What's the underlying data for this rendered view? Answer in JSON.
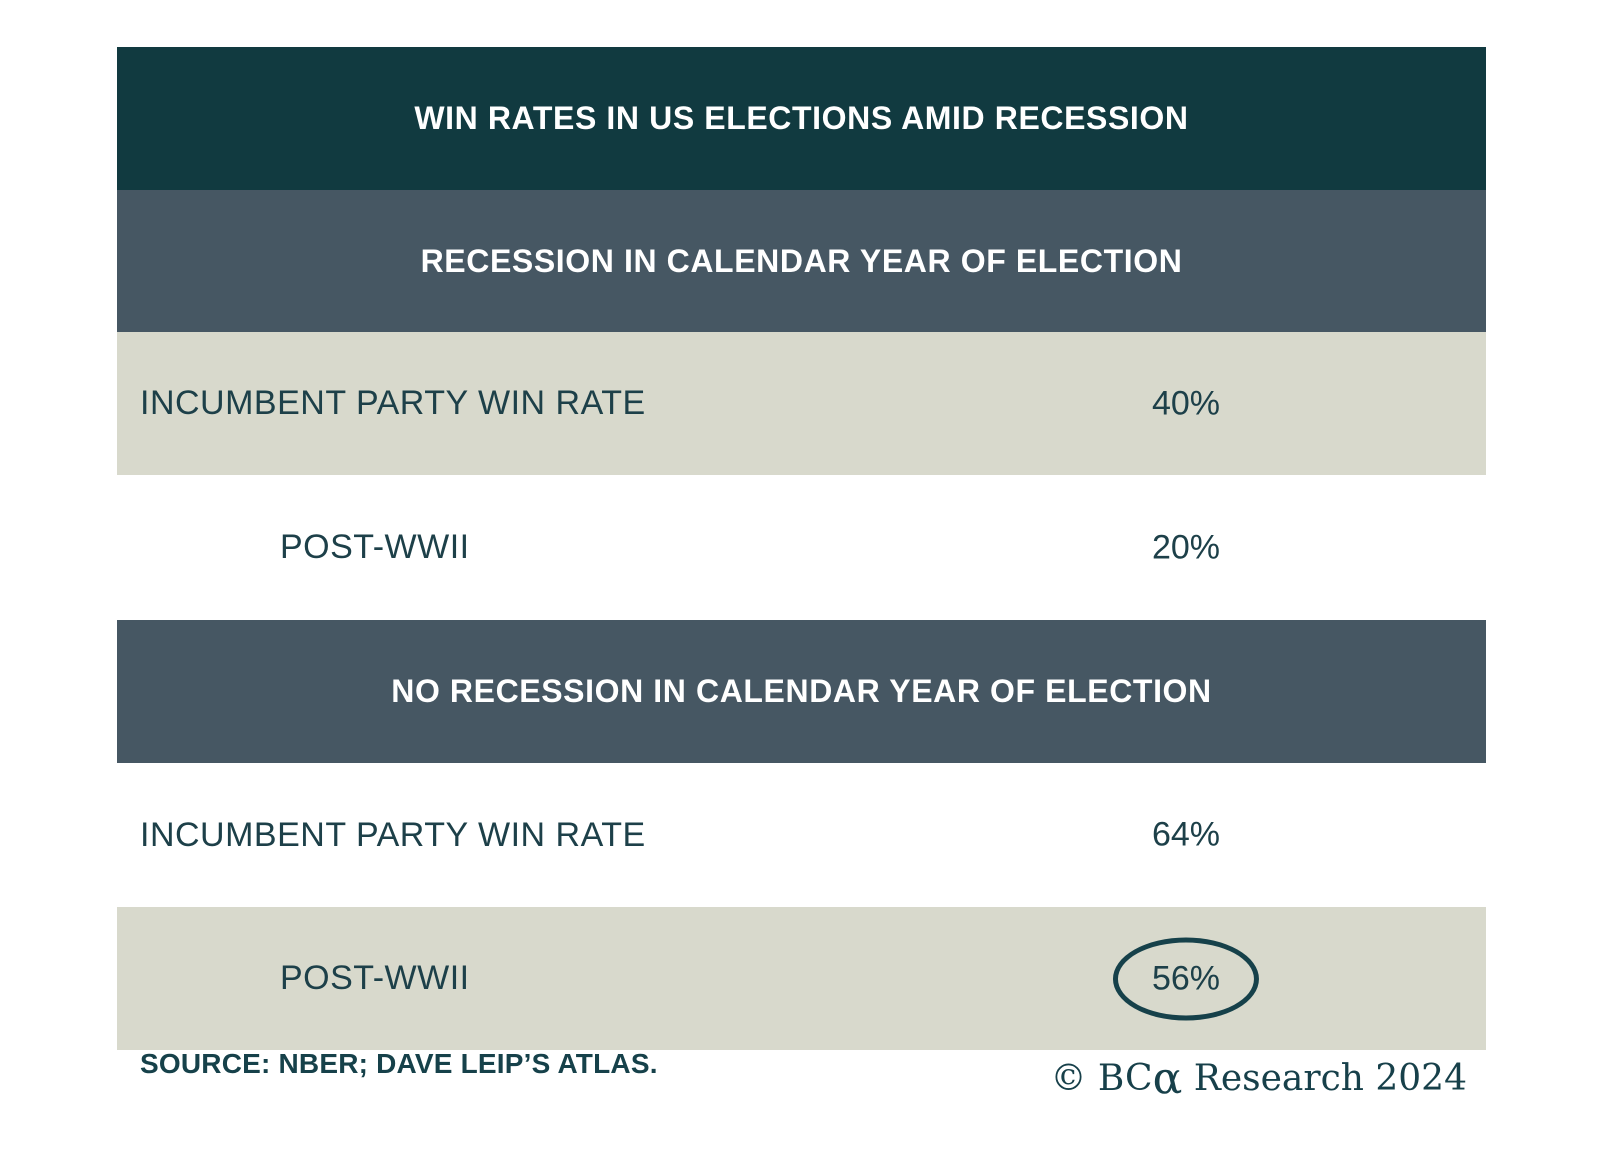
{
  "title": "WIN RATES IN US ELECTIONS AMID RECESSION",
  "colors": {
    "header_dark_teal": "#113a40",
    "section_slate": "#465763",
    "row_shaded": "#d8d9cc",
    "text_teal": "#1d4049",
    "circle_stroke": "#16414a",
    "header_text": "#ffffff"
  },
  "sections": [
    {
      "header": "RECESSION IN CALENDAR YEAR OF ELECTION",
      "rows": [
        {
          "label": "INCUMBENT PARTY WIN RATE",
          "value": "40%",
          "indent": false,
          "shaded": true,
          "circled": false
        },
        {
          "label": "POST-WWII",
          "value": "20%",
          "indent": true,
          "shaded": false,
          "circled": false
        }
      ]
    },
    {
      "header": "NO RECESSION IN CALENDAR YEAR OF ELECTION",
      "rows": [
        {
          "label": "INCUMBENT PARTY WIN RATE",
          "value": "64%",
          "indent": false,
          "shaded": false,
          "circled": false
        },
        {
          "label": "POST-WWII",
          "value": "56%",
          "indent": true,
          "shaded": true,
          "circled": true
        }
      ]
    }
  ],
  "footer": {
    "source": "SOURCE: NBER; DAVE LEIP’S ATLAS.",
    "copyright_prefix": "© BC",
    "copyright_alpha": "α",
    "copyright_suffix": " Research 2024"
  },
  "chart_data": {
    "type": "table",
    "title": "WIN RATES IN US ELECTIONS AMID RECESSION",
    "unit": "%",
    "groups": [
      {
        "header": "RECESSION IN CALENDAR YEAR OF ELECTION",
        "rows": [
          {
            "label": "INCUMBENT PARTY WIN RATE",
            "value": 40
          },
          {
            "label": "POST-WWII",
            "value": 20
          }
        ]
      },
      {
        "header": "NO RECESSION IN CALENDAR YEAR OF ELECTION",
        "rows": [
          {
            "label": "INCUMBENT PARTY WIN RATE",
            "value": 64
          },
          {
            "label": "POST-WWII",
            "value": 56
          }
        ]
      }
    ],
    "annotations": [
      "56% value is circled with an ellipse"
    ],
    "source": "NBER; DAVE LEIP'S ATLAS",
    "attribution": "© BCα Research 2024"
  }
}
